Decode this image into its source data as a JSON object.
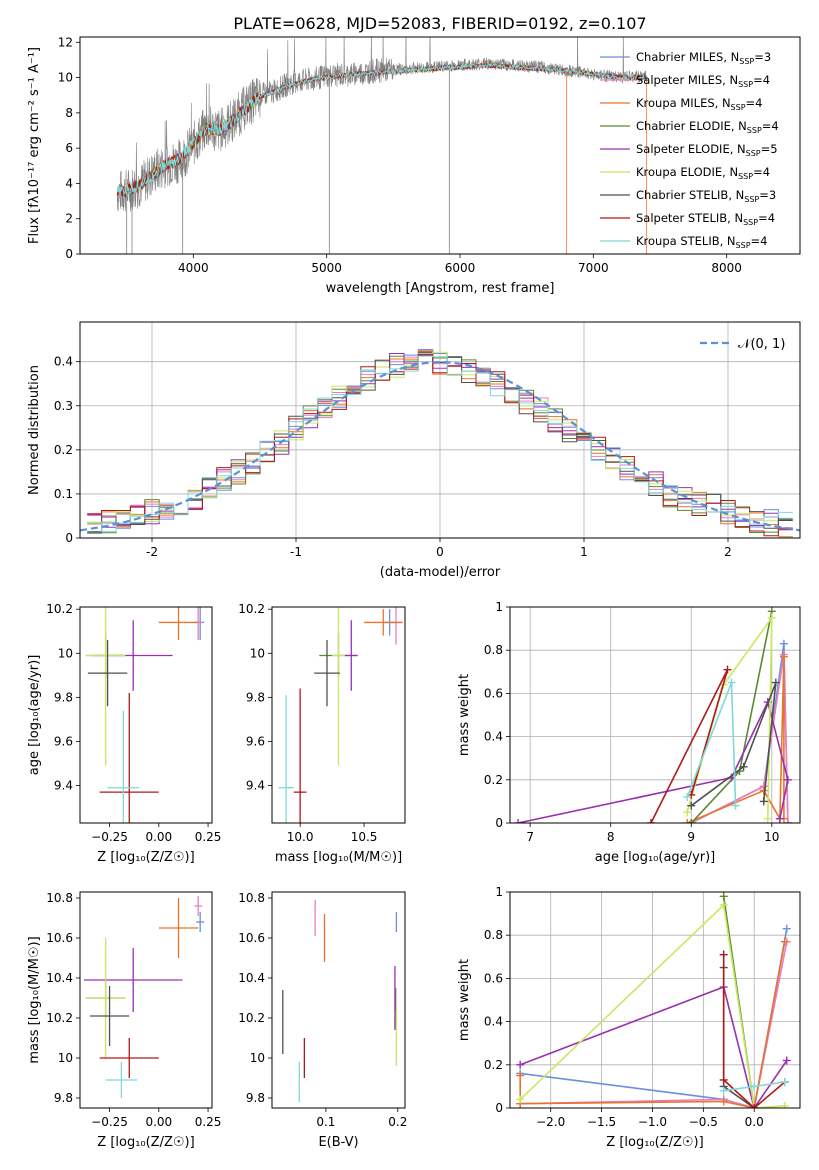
{
  "figure": {
    "title": "PLATE=0628, MJD=52083, FIBERID=0192, z=0.107"
  },
  "chart_data": [
    {
      "id": "spectrum",
      "type": "line",
      "xlabel": "wavelength [Angstrom, rest frame]",
      "ylabel": "Flux [fλ10⁻¹⁷ erg cm⁻² s⁻¹ A⁻¹]",
      "xlim": [
        3150,
        8550
      ],
      "ylim": [
        0,
        12.3
      ],
      "xticks": [
        4000,
        5000,
        6000,
        7000,
        8000
      ],
      "yticks": [
        0,
        2,
        4,
        6,
        8,
        10,
        12
      ],
      "grid": false,
      "legend": "upper-right",
      "data_color": "#808080",
      "x": [
        3430,
        3500,
        3600,
        3700,
        3800,
        3900,
        4000,
        4100,
        4200,
        4300,
        4400,
        4500,
        4600,
        4700,
        4800,
        4900,
        5000,
        5200,
        5400,
        5600,
        5800,
        6000,
        6200,
        6400,
        6600,
        6800,
        7000,
        7200,
        7400
      ],
      "data_y": [
        3.5,
        3.6,
        3.9,
        4.6,
        5.1,
        5.3,
        6.2,
        7.2,
        7.0,
        7.6,
        8.4,
        9.0,
        9.2,
        9.6,
        9.8,
        9.9,
        10.1,
        10.2,
        10.4,
        10.5,
        10.6,
        10.7,
        10.8,
        10.7,
        10.6,
        10.4,
        10.2,
        10.0,
        10.1
      ],
      "model_y": [
        3.5,
        3.6,
        3.9,
        4.5,
        5.1,
        5.4,
        6.3,
        7.1,
        7.0,
        7.6,
        8.3,
        8.9,
        9.2,
        9.5,
        9.7,
        9.9,
        10.0,
        10.2,
        10.3,
        10.4,
        10.5,
        10.6,
        10.7,
        10.6,
        10.5,
        10.4,
        10.2,
        10.0,
        10.0
      ],
      "series": [
        {
          "name": "Chabrier MILES, N_SSP=3",
          "label_main": "Chabrier MILES, N",
          "label_sub": "SSP",
          "label_tail": "=3",
          "color": "#6a8ee0"
        },
        {
          "name": "Salpeter MILES, N_SSP=4",
          "label_main": "Salpeter MILES, N",
          "label_sub": "SSP",
          "label_tail": "=4",
          "color": "#e87fc4"
        },
        {
          "name": "Kroupa MILES, N_SSP=4",
          "label_main": "Kroupa MILES, N",
          "label_sub": "SSP",
          "label_tail": "=4",
          "color": "#e8742a"
        },
        {
          "name": "Chabrier ELODIE, N_SSP=4",
          "label_main": "Chabrier ELODIE, N",
          "label_sub": "SSP",
          "label_tail": "=4",
          "color": "#5a8a30"
        },
        {
          "name": "Salpeter ELODIE, N_SSP=5",
          "label_main": "Salpeter ELODIE, N",
          "label_sub": "SSP",
          "label_tail": "=5",
          "color": "#9a30b0"
        },
        {
          "name": "Kroupa ELODIE, N_SSP=4",
          "label_main": "Kroupa ELODIE, N",
          "label_sub": "SSP",
          "label_tail": "=4",
          "color": "#c8e860"
        },
        {
          "name": "Chabrier STELIB, N_SSP=3",
          "label_main": "Chabrier STELIB, N",
          "label_sub": "SSP",
          "label_tail": "=3",
          "color": "#505050"
        },
        {
          "name": "Salpeter STELIB, N_SSP=4",
          "label_main": "Salpeter STELIB, N",
          "label_sub": "SSP",
          "label_tail": "=4",
          "color": "#b01818"
        },
        {
          "name": "Kroupa STELIB, N_SSP=4",
          "label_main": "Kroupa STELIB, N",
          "label_sub": "SSP",
          "label_tail": "=4",
          "color": "#80d8d8"
        }
      ]
    },
    {
      "id": "residuals",
      "type": "line",
      "xlabel": "(data-model)/error",
      "ylabel": "Normed distribution",
      "xlim": [
        -2.5,
        2.5
      ],
      "ylim": [
        0,
        0.49
      ],
      "xticks": [
        -2,
        -1,
        0,
        1,
        2
      ],
      "yticks": [
        0.0,
        0.1,
        0.2,
        0.3,
        0.4
      ],
      "grid": true,
      "legend": "upper-right",
      "normal_label": "𝒩(0, 1)",
      "normal_color": "#5b8fd8",
      "hist_x": [
        -2.4,
        -2.3,
        -2.2,
        -2.1,
        -2.0,
        -1.9,
        -1.8,
        -1.7,
        -1.6,
        -1.5,
        -1.4,
        -1.3,
        -1.2,
        -1.1,
        -1.0,
        -0.9,
        -0.8,
        -0.7,
        -0.6,
        -0.5,
        -0.4,
        -0.3,
        -0.2,
        -0.1,
        0.0,
        0.1,
        0.2,
        0.3,
        0.4,
        0.5,
        0.6,
        0.7,
        0.8,
        0.9,
        1.0,
        1.1,
        1.2,
        1.3,
        1.4,
        1.5,
        1.6,
        1.7,
        1.8,
        1.9,
        2.0,
        2.1,
        2.2,
        2.3,
        2.4
      ],
      "hist_y": [
        0.03,
        0.035,
        0.04,
        0.05,
        0.06,
        0.07,
        0.08,
        0.09,
        0.11,
        0.13,
        0.15,
        0.17,
        0.2,
        0.22,
        0.25,
        0.27,
        0.3,
        0.32,
        0.34,
        0.36,
        0.38,
        0.39,
        0.4,
        0.41,
        0.4,
        0.395,
        0.38,
        0.37,
        0.35,
        0.33,
        0.31,
        0.29,
        0.27,
        0.24,
        0.22,
        0.2,
        0.18,
        0.16,
        0.14,
        0.12,
        0.1,
        0.09,
        0.08,
        0.07,
        0.06,
        0.05,
        0.04,
        0.035,
        0.03
      ]
    },
    {
      "id": "age-vs-z",
      "type": "scatter",
      "xlabel": "Z [log₁₀(Z/Z☉)]",
      "ylabel": "age  [log₁₀(age/yr)]",
      "xlim": [
        -0.4,
        0.27
      ],
      "ylim": [
        9.23,
        10.21
      ],
      "xticks": [
        -0.25,
        0.0,
        0.25
      ],
      "xticklabels": [
        "−0.25",
        "0.00",
        "0.25"
      ],
      "yticks": [
        9.4,
        9.6,
        9.8,
        10.0,
        10.2
      ],
      "points": [
        {
          "x": 0.21,
          "y": 10.14,
          "xerr": 0.02,
          "yerr": 0.08,
          "color": "#6a8ee0"
        },
        {
          "x": 0.2,
          "y": 10.14,
          "xerr": 0.02,
          "yerr": 0.08,
          "color": "#e87fc4"
        },
        {
          "x": 0.1,
          "y": 10.14,
          "xerr": 0.1,
          "yerr": 0.08,
          "color": "#e8742a"
        },
        {
          "x": -0.27,
          "y": 9.99,
          "xerr": 0.1,
          "yerr": 0.1,
          "color": "#5a8a30"
        },
        {
          "x": -0.13,
          "y": 9.99,
          "xerr": 0.2,
          "yerr": 0.16,
          "color": "#9a30b0"
        },
        {
          "x": -0.27,
          "y": 9.99,
          "xerr": 0.1,
          "yerr": 0.5,
          "color": "#c8e860"
        },
        {
          "x": -0.26,
          "y": 9.91,
          "xerr": 0.1,
          "yerr": 0.15,
          "color": "#505050"
        },
        {
          "x": -0.15,
          "y": 9.37,
          "xerr": 0.15,
          "yerr": 0.45,
          "color": "#b01818"
        },
        {
          "x": -0.18,
          "y": 9.39,
          "xerr": 0.08,
          "yerr": 0.35,
          "color": "#80d8d8"
        }
      ]
    },
    {
      "id": "age-vs-mass",
      "type": "scatter",
      "xlabel": "mass [log₁₀(M/M☉)]",
      "ylabel": "",
      "xlim": [
        9.78,
        10.82
      ],
      "ylim": [
        9.23,
        10.21
      ],
      "xticks": [
        10.0,
        10.5
      ],
      "xticklabels": [
        "10.0",
        "10.5"
      ],
      "yticks": [
        9.4,
        9.6,
        9.8,
        10.0,
        10.2
      ],
      "points": [
        {
          "x": 10.7,
          "y": 10.14,
          "xerr": 0.05,
          "yerr": 0.06,
          "color": "#6a8ee0"
        },
        {
          "x": 10.75,
          "y": 10.14,
          "xerr": 0.05,
          "yerr": 0.1,
          "color": "#e87fc4"
        },
        {
          "x": 10.65,
          "y": 10.14,
          "xerr": 0.15,
          "yerr": 0.06,
          "color": "#e8742a"
        },
        {
          "x": 10.3,
          "y": 9.99,
          "xerr": 0.15,
          "yerr": 0.1,
          "color": "#5a8a30"
        },
        {
          "x": 10.4,
          "y": 9.99,
          "xerr": 0.05,
          "yerr": 0.16,
          "color": "#9a30b0"
        },
        {
          "x": 10.3,
          "y": 9.99,
          "xerr": 0.05,
          "yerr": 0.5,
          "color": "#c8e860"
        },
        {
          "x": 10.21,
          "y": 9.91,
          "xerr": 0.1,
          "yerr": 0.15,
          "color": "#505050"
        },
        {
          "x": 10.0,
          "y": 9.37,
          "xerr": 0.05,
          "yerr": 0.47,
          "color": "#b01818"
        },
        {
          "x": 9.89,
          "y": 9.39,
          "xerr": 0.06,
          "yerr": 0.42,
          "color": "#80d8d8"
        }
      ]
    },
    {
      "id": "weight-vs-age",
      "type": "line",
      "xlabel": "age  [log₁₀(age/yr)]",
      "ylabel": "mass weight",
      "xlim": [
        6.75,
        10.35
      ],
      "ylim": [
        0,
        1.0
      ],
      "xticks": [
        7,
        8,
        9,
        10
      ],
      "xticklabels": [
        "7",
        "8",
        "9",
        "10"
      ],
      "yticks": [
        0.0,
        0.2,
        0.4,
        0.6,
        0.8,
        1.0
      ],
      "grid": true,
      "series": [
        {
          "x": [
            9.0,
            9.9,
            10.15,
            10.2
          ],
          "y": [
            0.0,
            0.17,
            0.83,
            0.0
          ],
          "color": "#6a8ee0"
        },
        {
          "x": [
            9.0,
            9.9,
            10.15,
            10.2
          ],
          "y": [
            0.0,
            0.17,
            0.78,
            0.0
          ],
          "color": "#e87fc4"
        },
        {
          "x": [
            8.95,
            9.9,
            10.1,
            10.15,
            10.15
          ],
          "y": [
            0.0,
            0.15,
            0.02,
            0.77,
            0.02
          ],
          "color": "#e8742a"
        },
        {
          "x": [
            9.0,
            9.6,
            10.0
          ],
          "y": [
            0.0,
            0.24,
            0.98
          ],
          "color": "#5a8a30"
        },
        {
          "x": [
            6.85,
            9.5,
            9.95,
            10.2,
            10.1
          ],
          "y": [
            0.0,
            0.21,
            0.56,
            0.2,
            0.02
          ],
          "color": "#9a30b0"
        },
        {
          "x": [
            8.95,
            9.4,
            10.0,
            9.95
          ],
          "y": [
            0.05,
            0.64,
            0.95,
            0.02
          ],
          "color": "#c8e860"
        },
        {
          "x": [
            9.0,
            9.65,
            10.05,
            9.9
          ],
          "y": [
            0.08,
            0.26,
            0.65,
            0.1
          ],
          "color": "#505050"
        },
        {
          "x": [
            8.5,
            9.45,
            9.0
          ],
          "y": [
            0.0,
            0.71,
            0.13
          ],
          "color": "#b01818"
        },
        {
          "x": [
            8.95,
            9.5,
            9.55
          ],
          "y": [
            0.12,
            0.65,
            0.08
          ],
          "color": "#80d8d8"
        }
      ]
    },
    {
      "id": "mass-vs-z",
      "type": "scatter",
      "xlabel": "Z [log₁₀(Z/Z☉)]",
      "ylabel": "mass [log₁₀(M/M☉)]",
      "xlim": [
        -0.4,
        0.27
      ],
      "ylim": [
        9.75,
        10.83
      ],
      "xticks": [
        -0.25,
        0.0,
        0.25
      ],
      "xticklabels": [
        "−0.25",
        "0.00",
        "0.25"
      ],
      "yticks": [
        9.8,
        10.0,
        10.2,
        10.4,
        10.6,
        10.8
      ],
      "points": [
        {
          "x": 0.21,
          "y": 10.68,
          "xerr": 0.02,
          "yerr": 0.05,
          "color": "#6a8ee0"
        },
        {
          "x": 0.2,
          "y": 10.76,
          "xerr": 0.02,
          "yerr": 0.05,
          "color": "#e87fc4"
        },
        {
          "x": 0.1,
          "y": 10.65,
          "xerr": 0.1,
          "yerr": 0.15,
          "color": "#e8742a"
        },
        {
          "x": -0.27,
          "y": 10.3,
          "xerr": 0.1,
          "yerr": 0.1,
          "color": "#5a8a30"
        },
        {
          "x": -0.13,
          "y": 10.39,
          "xerr": 0.25,
          "yerr": 0.16,
          "color": "#9a30b0"
        },
        {
          "x": -0.27,
          "y": 10.3,
          "xerr": 0.1,
          "yerr": 0.3,
          "color": "#c8e860"
        },
        {
          "x": -0.25,
          "y": 10.21,
          "xerr": 0.1,
          "yerr": 0.15,
          "color": "#505050"
        },
        {
          "x": -0.15,
          "y": 10.0,
          "xerr": 0.15,
          "yerr": 0.1,
          "color": "#b01818"
        },
        {
          "x": -0.19,
          "y": 9.89,
          "xerr": 0.08,
          "yerr": 0.09,
          "color": "#80d8d8"
        }
      ]
    },
    {
      "id": "mass-vs-ebv",
      "type": "scatter",
      "xlabel": "E(B-V)",
      "ylabel": "",
      "xlim": [
        0.025,
        0.21
      ],
      "ylim": [
        9.75,
        10.83
      ],
      "xticks": [
        0.1,
        0.2
      ],
      "xticklabels": [
        "0.1",
        "0.2"
      ],
      "yticks": [
        9.8,
        10.0,
        10.2,
        10.4,
        10.6,
        10.8
      ],
      "points": [
        {
          "x": 0.198,
          "y": 10.68,
          "xerr": 0.0,
          "yerr": 0.05,
          "color": "#6a8ee0"
        },
        {
          "x": 0.085,
          "y": 10.7,
          "xerr": 0.0,
          "yerr": 0.09,
          "color": "#e87fc4"
        },
        {
          "x": 0.098,
          "y": 10.6,
          "xerr": 0.0,
          "yerr": 0.12,
          "color": "#e8742a"
        },
        {
          "x": 0.197,
          "y": 10.25,
          "xerr": 0.0,
          "yerr": 0.1,
          "color": "#5a8a30"
        },
        {
          "x": 0.196,
          "y": 10.3,
          "xerr": 0.0,
          "yerr": 0.16,
          "color": "#9a30b0"
        },
        {
          "x": 0.198,
          "y": 10.1,
          "xerr": 0.0,
          "yerr": 0.14,
          "color": "#c8e860"
        },
        {
          "x": 0.04,
          "y": 10.18,
          "xerr": 0.0,
          "yerr": 0.16,
          "color": "#505050"
        },
        {
          "x": 0.07,
          "y": 10.0,
          "xerr": 0.0,
          "yerr": 0.1,
          "color": "#b01818"
        },
        {
          "x": 0.063,
          "y": 9.88,
          "xerr": 0.0,
          "yerr": 0.1,
          "color": "#80d8d8"
        }
      ]
    },
    {
      "id": "weight-vs-z",
      "type": "line",
      "xlabel": "Z [log₁₀(Z/Z☉)]",
      "ylabel": "mass weight",
      "xlim": [
        -2.4,
        0.45
      ],
      "ylim": [
        0,
        1.0
      ],
      "xticks": [
        -2.0,
        -1.5,
        -1.0,
        -0.5,
        0.0
      ],
      "xticklabels": [
        "−2.0",
        "−1.5",
        "−1.0",
        "−0.5",
        "0.0"
      ],
      "yticks": [
        0.0,
        0.2,
        0.4,
        0.6,
        0.8,
        1.0
      ],
      "grid": true,
      "series": [
        {
          "x": [
            -2.3,
            -0.3,
            0.0,
            0.32
          ],
          "y": [
            0.16,
            0.04,
            0.0,
            0.83
          ],
          "color": "#6a8ee0"
        },
        {
          "x": [
            -2.3,
            -0.3,
            0.0,
            0.32
          ],
          "y": [
            0.02,
            0.04,
            0.0,
            0.77
          ],
          "color": "#e87fc4"
        },
        {
          "x": [
            -2.3,
            -2.3,
            -0.3,
            0.0,
            0.3
          ],
          "y": [
            0.15,
            0.02,
            0.03,
            0.0,
            0.77
          ],
          "color": "#e8742a"
        },
        {
          "x": [
            -0.3,
            0.0
          ],
          "y": [
            0.98,
            0.0
          ],
          "color": "#5a8a30"
        },
        {
          "x": [
            -2.3,
            -0.3,
            0.0,
            0.32,
            0.0
          ],
          "y": [
            0.2,
            0.56,
            0.0,
            0.22,
            0.0
          ],
          "color": "#9a30b0"
        },
        {
          "x": [
            -2.3,
            -0.3,
            0.0,
            0.3
          ],
          "y": [
            0.04,
            0.94,
            0.0,
            0.01
          ],
          "color": "#c8e860"
        },
        {
          "x": [
            -0.3,
            -0.3,
            0.0
          ],
          "y": [
            0.65,
            0.1,
            0.0
          ],
          "color": "#505050"
        },
        {
          "x": [
            -0.3,
            -0.3,
            0.0,
            0.3
          ],
          "y": [
            0.71,
            0.13,
            0.0,
            0.12
          ],
          "color": "#b01818"
        },
        {
          "x": [
            -0.3,
            0.0,
            0.3
          ],
          "y": [
            0.08,
            0.1,
            0.12
          ],
          "color": "#80d8d8"
        }
      ]
    }
  ]
}
